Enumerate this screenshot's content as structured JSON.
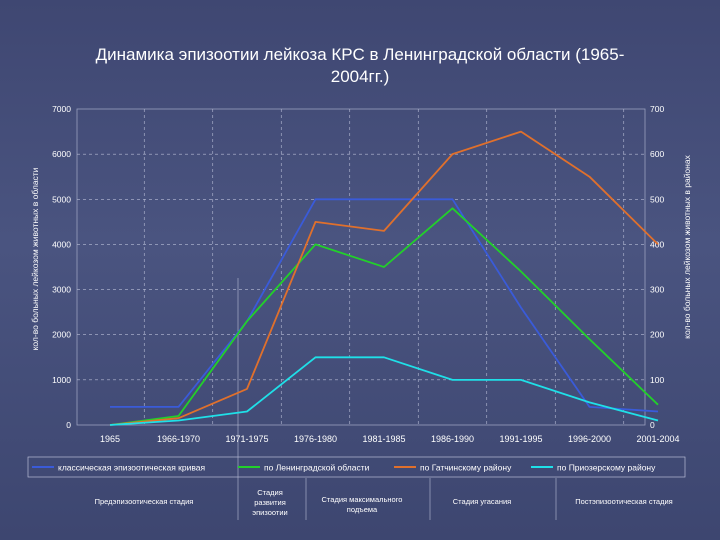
{
  "title": "Динамика эпизоотии лейкоза КРС в Ленинградской области (1965-2004гг.)",
  "title_line1": "Динамика эпизоотии лейкоза КРС в Ленинградской области (1965-",
  "title_line2": "2004гг.)",
  "chart_data": {
    "type": "line",
    "title": "Динамика эпизоотии лейкоза КРС в Ленинградской области (1965-2004гг.)",
    "categories": [
      "1965",
      "1966-1970",
      "1971-1975",
      "1976-1980",
      "1981-1985",
      "1986-1990",
      "1991-1995",
      "1996-2000",
      "2001-2004"
    ],
    "ylabel_left": "кол-во больных лейкозом животных в области",
    "ylabel_right": "кол-во больных лейкозом животных в районах",
    "ylim_left": [
      0,
      7000
    ],
    "ylim_right": [
      0,
      700
    ],
    "yticks_left": [
      "0",
      "1000",
      "2000",
      "3000",
      "4000",
      "5000",
      "6000",
      "7000"
    ],
    "yticks_right": [
      "0",
      "100",
      "200",
      "300",
      "400",
      "500",
      "600",
      "700"
    ],
    "grid": true,
    "legend_position": "bottom",
    "series": [
      {
        "name": "классическая эпизоотическая кривая",
        "axis": "left",
        "color": "#3a5bd9",
        "values": [
          400,
          400,
          2300,
          5000,
          5000,
          5000,
          2600,
          400,
          300
        ]
      },
      {
        "name": "по Ленинградской области",
        "axis": "left",
        "color": "#22d02a",
        "values": [
          0,
          200,
          2300,
          4000,
          3500,
          4800,
          3400,
          1900,
          450
        ]
      },
      {
        "name": "по Гатчинскому району",
        "axis": "right",
        "color": "#e0702c",
        "values": [
          0,
          15,
          80,
          450,
          430,
          600,
          650,
          550,
          400
        ]
      },
      {
        "name": "по Приозерскому району",
        "axis": "right",
        "color": "#1fe0e8",
        "values": [
          0,
          10,
          30,
          150,
          150,
          100,
          100,
          50,
          10
        ]
      }
    ]
  },
  "stages": [
    {
      "label": "Предэпизоотическая стадия"
    },
    {
      "label": "Стадия развития эпизоотии"
    },
    {
      "label": "Стадия максимального подъема"
    },
    {
      "label": "Стадия угасания"
    },
    {
      "label": "Постэпизоотическая стадия"
    }
  ]
}
